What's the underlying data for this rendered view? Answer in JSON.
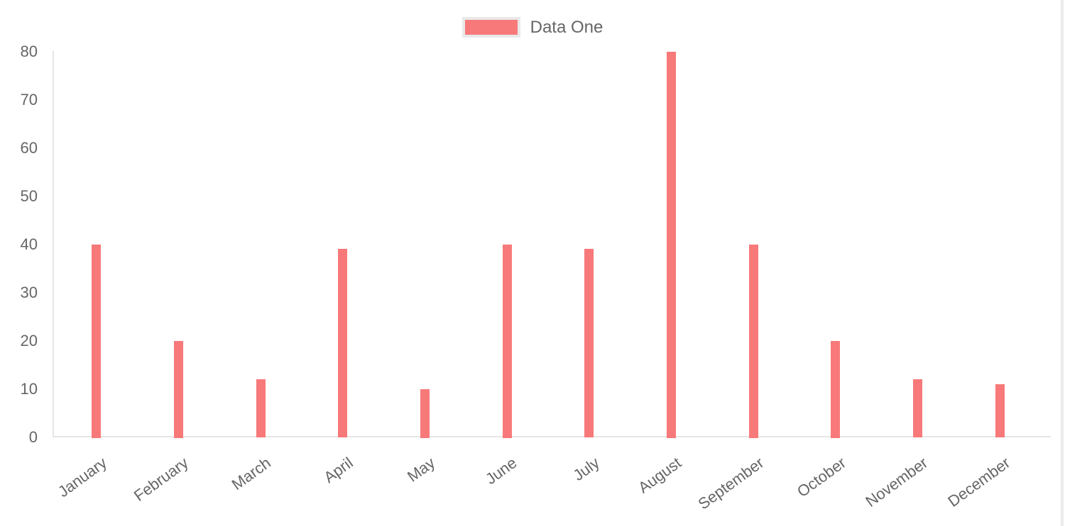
{
  "chart_data": {
    "type": "bar",
    "title": "",
    "xlabel": "",
    "ylabel": "",
    "categories": [
      "January",
      "February",
      "March",
      "April",
      "May",
      "June",
      "July",
      "August",
      "September",
      "October",
      "November",
      "December"
    ],
    "series": [
      {
        "name": "Data One",
        "color": "#f87979",
        "values": [
          40,
          20,
          12,
          39,
          10,
          40,
          39,
          80,
          40,
          20,
          12,
          11
        ]
      }
    ],
    "ylim": [
      0,
      80
    ],
    "yticks": [
      0,
      10,
      20,
      30,
      40,
      50,
      60,
      70,
      80
    ],
    "grid": false,
    "legend_position": "top",
    "x_label_rotation_deg": 36
  },
  "colors": {
    "bar": "#f87979",
    "text": "#666666",
    "axis_line": "#e6e6e6",
    "legend_swatch_border": "#e9e9e9",
    "right_edge_line": "#ebebeb",
    "background": "#ffffff"
  }
}
